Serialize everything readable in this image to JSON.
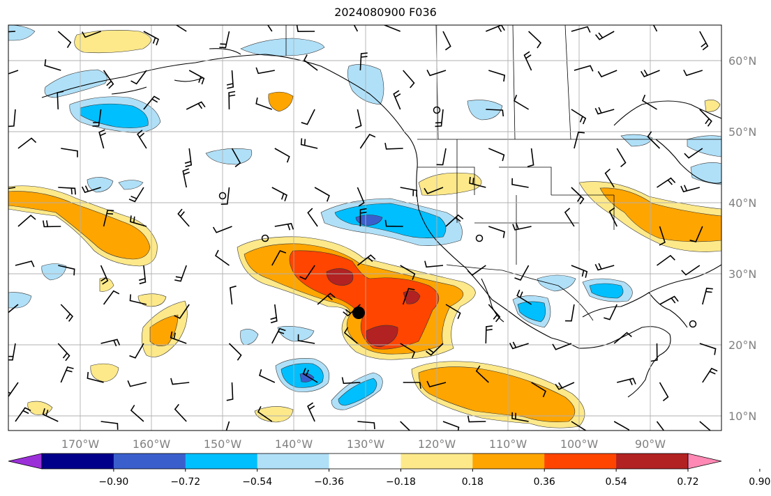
{
  "title": "2024080900 F036",
  "longitude_labels": [
    "170°W",
    "160°W",
    "150°W",
    "140°W",
    "130°W",
    "120°W",
    "110°W",
    "100°W",
    "90°W"
  ],
  "latitude_labels": [
    "60°N",
    "50°N",
    "40°N",
    "30°N",
    "20°N",
    "10°N"
  ],
  "colorbar": {
    "colors": [
      "#9b30d9",
      "#00008b",
      "#3a5fcd",
      "#00bfff",
      "#b0e0f8",
      "#ffffff",
      "#fde98a",
      "#ffa500",
      "#ff4500",
      "#b22222",
      "#ff89b4"
    ],
    "tick_labels": [
      "−0.90",
      "−0.72",
      "−0.54",
      "−0.36",
      "−0.18",
      "0.18",
      "0.36",
      "0.54",
      "0.72",
      "0.90"
    ]
  }
}
